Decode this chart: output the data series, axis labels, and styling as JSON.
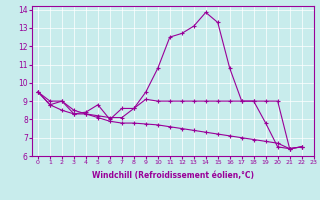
{
  "xlabel": "Windchill (Refroidissement éolien,°C)",
  "background_color": "#c8ecec",
  "line_color": "#990099",
  "xlim": [
    -0.5,
    23
  ],
  "ylim": [
    6,
    14.2
  ],
  "yticks": [
    6,
    7,
    8,
    9,
    10,
    11,
    12,
    13,
    14
  ],
  "xticks": [
    0,
    1,
    2,
    3,
    4,
    5,
    6,
    7,
    8,
    9,
    10,
    11,
    12,
    13,
    14,
    15,
    16,
    17,
    18,
    19,
    20,
    21,
    22,
    23
  ],
  "series": [
    [
      9.5,
      8.8,
      9.0,
      8.3,
      8.4,
      8.8,
      8.0,
      8.6,
      8.6,
      9.5,
      10.8,
      12.5,
      12.7,
      13.1,
      13.85,
      13.3,
      10.8,
      9.0,
      9.0,
      7.8,
      6.5,
      6.4,
      6.5
    ],
    [
      9.5,
      9.0,
      9.0,
      8.5,
      8.3,
      8.2,
      8.1,
      8.1,
      8.6,
      9.1,
      9.0,
      9.0,
      9.0,
      9.0,
      9.0,
      9.0,
      9.0,
      9.0,
      9.0,
      9.0,
      9.0,
      6.4,
      6.5
    ],
    [
      9.5,
      8.8,
      8.5,
      8.3,
      8.3,
      8.1,
      7.9,
      7.8,
      7.8,
      7.75,
      7.7,
      7.6,
      7.5,
      7.4,
      7.3,
      7.2,
      7.1,
      7.0,
      6.9,
      6.8,
      6.7,
      6.4,
      6.5
    ]
  ],
  "xlabel_fontsize": 5.5,
  "ytick_fontsize": 5.5,
  "xtick_fontsize": 4.5
}
